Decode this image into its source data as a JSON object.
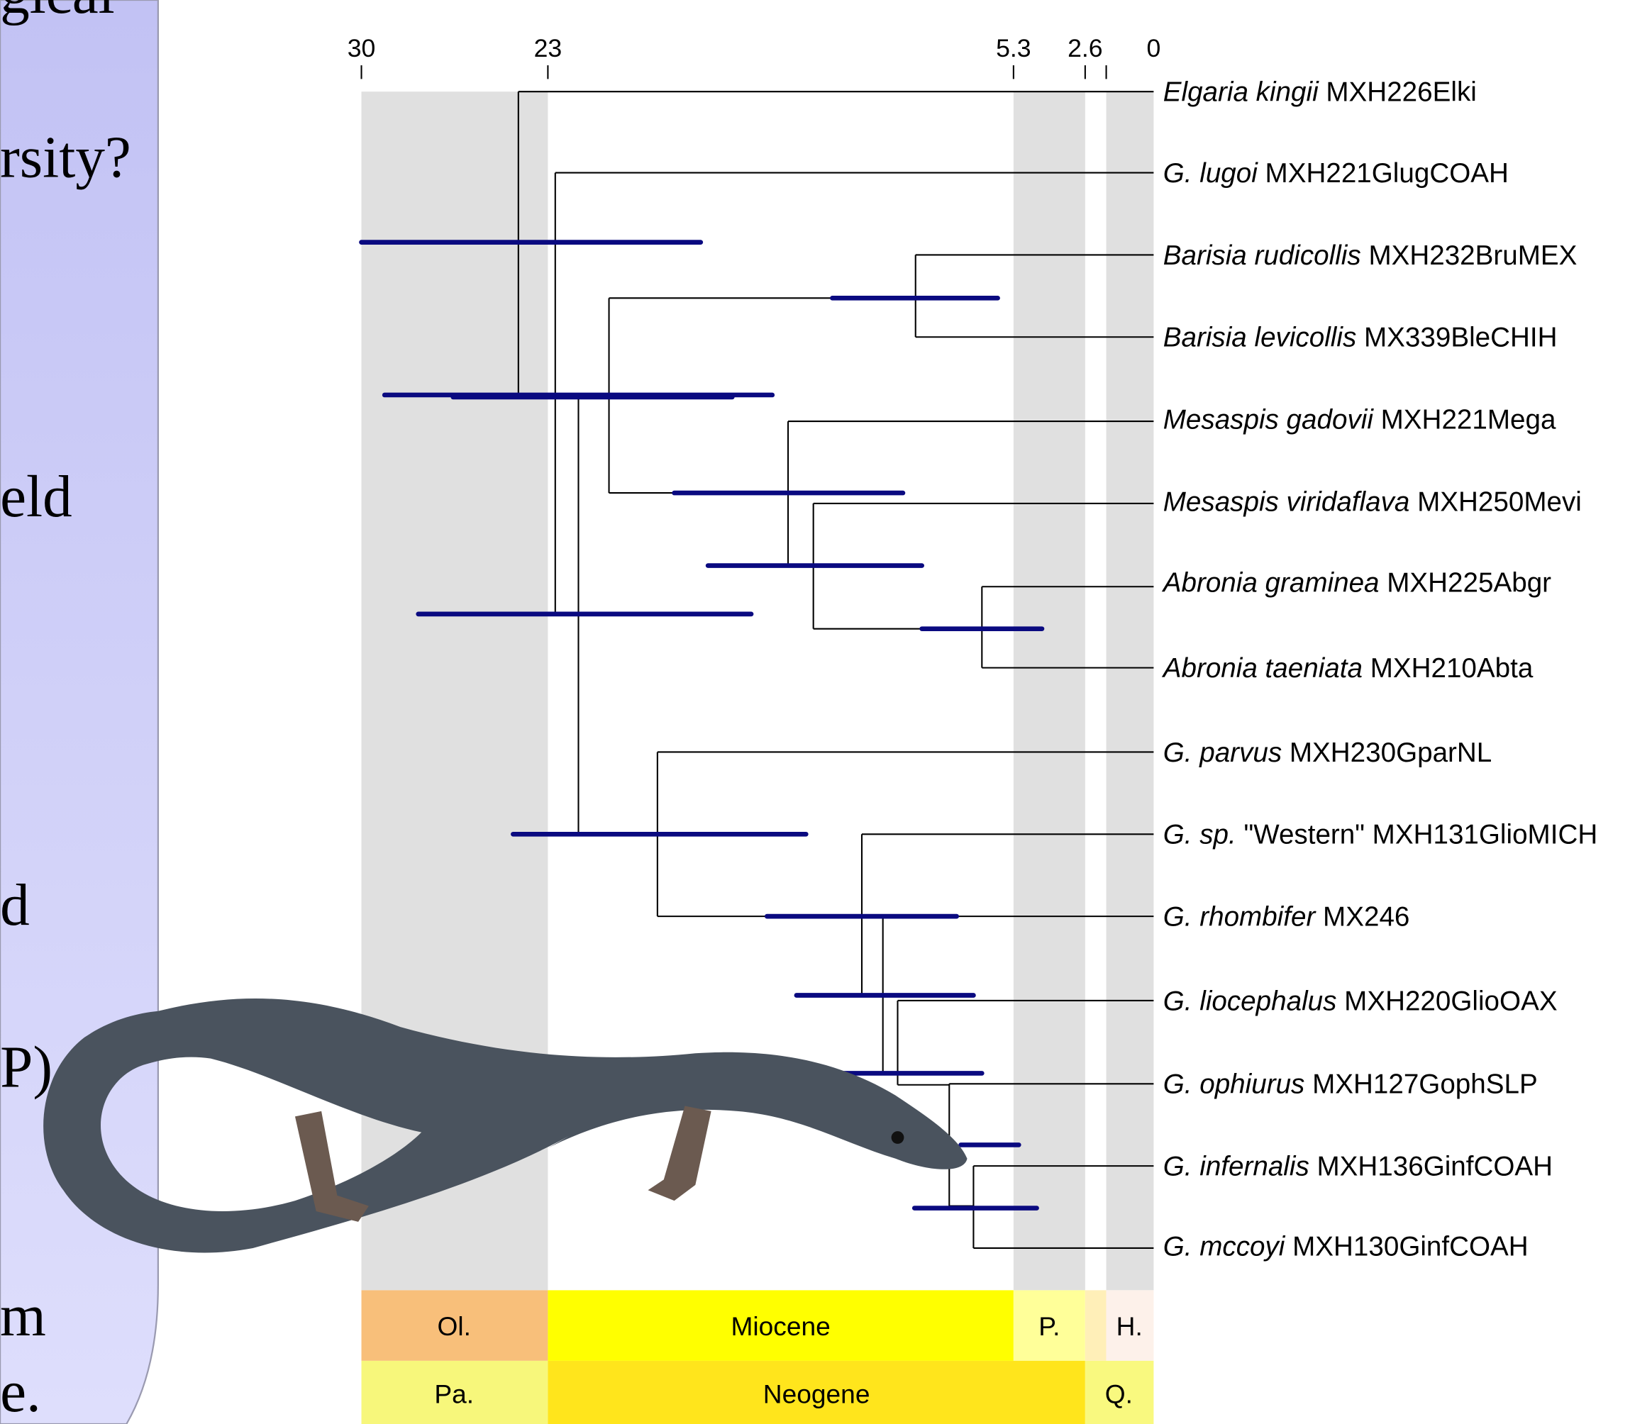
{
  "slide_text": [
    "gical",
    "rsity?",
    "eld",
    "d",
    "P)",
    "m",
    "e."
  ],
  "time_axis": {
    "ticks": [
      "30",
      "23",
      "5.3",
      "2.6",
      "0"
    ]
  },
  "taxa": [
    {
      "italic": "Elgaria kingii",
      "code": "MXH226Elki"
    },
    {
      "italic": "G. lugoi",
      "code": "MXH221GlugCOAH"
    },
    {
      "italic": "Barisia rudicollis",
      "code": "MXH232BruMEX"
    },
    {
      "italic": "Barisia levicollis",
      "code": "MX339BleCHIH"
    },
    {
      "italic": "Mesaspis gadovii",
      "code": "MXH221Mega"
    },
    {
      "italic": "Mesaspis viridaflava",
      "code": "MXH250Mevi"
    },
    {
      "italic": "Abronia graminea",
      "code": "MXH225Abgr"
    },
    {
      "italic": "Abronia taeniata",
      "code": "MXH210Abta"
    },
    {
      "italic": "G. parvus",
      "code": "MXH230GparNL"
    },
    {
      "italic": "G. sp.",
      "code": "\"Western\" MXH131GlioMICH"
    },
    {
      "italic": "G. rhombifer",
      "code": "MX246"
    },
    {
      "italic": "G. liocephalus",
      "code": "MXH220GlioOAX"
    },
    {
      "italic": "G. ophiurus",
      "code": "MXH127GophSLP"
    },
    {
      "italic": "G. infernalis",
      "code": "MXH136GinfCOAH"
    },
    {
      "italic": "G. mccoyi",
      "code": "MXH130GinfCOAH"
    }
  ],
  "epochs": [
    "Ol.",
    "Miocene",
    "P.",
    "H."
  ],
  "periods": [
    "Pa.",
    "Neogene",
    "Q."
  ]
}
